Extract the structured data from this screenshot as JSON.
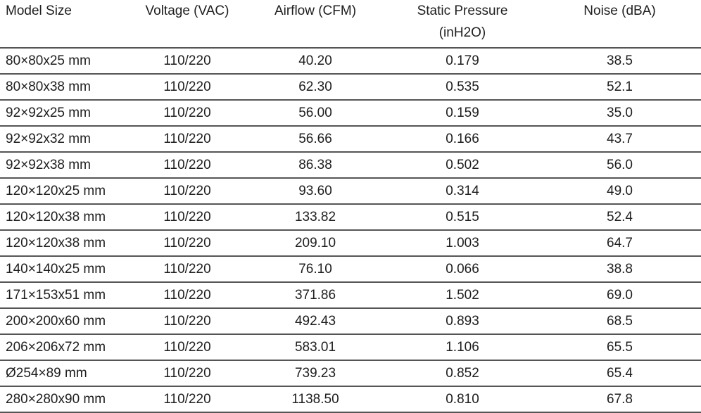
{
  "table": {
    "headers": [
      "Model Size",
      "Voltage (VAC)",
      "Airflow (CFM)",
      "Static Pressure (inH2O)",
      "Noise (dBA)"
    ],
    "header_lines": {
      "static_line1": "Static Pressure",
      "static_line2": "(inH2O)"
    },
    "rows": [
      [
        "80×80x25 mm",
        "110/220",
        "40.20",
        "0.179",
        "38.5"
      ],
      [
        "80×80x38 mm",
        "110/220",
        "62.30",
        "0.535",
        "52.1"
      ],
      [
        "92×92x25 mm",
        "110/220",
        "56.00",
        "0.159",
        "35.0"
      ],
      [
        "92×92x32 mm",
        "110/220",
        "56.66",
        "0.166",
        "43.7"
      ],
      [
        "92×92x38 mm",
        "110/220",
        "86.38",
        "0.502",
        "56.0"
      ],
      [
        "120×120x25 mm",
        "110/220",
        "93.60",
        "0.314",
        "49.0"
      ],
      [
        "120×120x38 mm",
        "110/220",
        "133.82",
        "0.515",
        "52.4"
      ],
      [
        "120×120x38 mm",
        "110/220",
        "209.10",
        "1.003",
        "64.7"
      ],
      [
        "140×140x25 mm",
        "110/220",
        "76.10",
        "0.066",
        "38.8"
      ],
      [
        "171×153x51 mm",
        "110/220",
        "371.86",
        "1.502",
        "69.0"
      ],
      [
        "200×200x60 mm",
        "110/220",
        "492.43",
        "0.893",
        "68.5"
      ],
      [
        "206×206x72 mm",
        "110/220",
        "583.01",
        "1.106",
        "65.5"
      ],
      [
        "Ø254×89 mm",
        "110/220",
        "739.23",
        "0.852",
        "65.4"
      ],
      [
        "280×280x90 mm",
        "110/220",
        "1138.50",
        "0.810",
        "67.8"
      ]
    ]
  }
}
